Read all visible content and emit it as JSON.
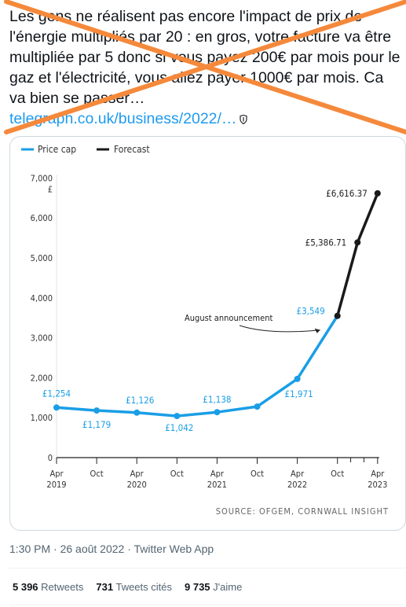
{
  "tweet": {
    "text": "Les gens ne réalisent pas encore l'impact de prix de l'énergie multipliés par 20 : en gros, votre facture va être multipliée par 5 donc si vous payez 200€ par mois pour le gaz et l'électricité, vous allez payer 1000€ par mois. Ca va bien se passer…",
    "link_text": "telegraph.co.uk/business/2022/…",
    "timestamp": "1:30 PM · 26 août 2022 · Twitter Web App",
    "stats": [
      {
        "count": "5 396",
        "label": "Retweets"
      },
      {
        "count": "731",
        "label": "Tweets cités"
      },
      {
        "count": "9 735",
        "label": "J'aime"
      }
    ]
  },
  "overlay": {
    "cross_color": "#f5893b"
  },
  "chart_data": {
    "type": "line",
    "legend": [
      {
        "name": "Price cap",
        "color": "#1a9ee6"
      },
      {
        "name": "Forecast",
        "color": "#1a1a1a"
      }
    ],
    "y_unit": "£",
    "yticks": [
      "0",
      "1,000",
      "2,000",
      "3,000",
      "4,000",
      "5,000",
      "6,000",
      "7,000"
    ],
    "ylim": [
      0,
      7000
    ],
    "xticks": [
      {
        "month": "Apr",
        "year": "2019"
      },
      {
        "month": "Oct",
        "year": ""
      },
      {
        "month": "Apr",
        "year": "2020"
      },
      {
        "month": "Oct",
        "year": ""
      },
      {
        "month": "Apr",
        "year": "2021"
      },
      {
        "month": "Oct",
        "year": ""
      },
      {
        "month": "Apr",
        "year": "2022"
      },
      {
        "month": "Oct",
        "year": ""
      },
      {
        "month": "Apr",
        "year": "2023"
      }
    ],
    "series": [
      {
        "name": "Price cap",
        "points": [
          {
            "x": "Apr 2019",
            "y": 1254,
            "label": "£1,254"
          },
          {
            "x": "Oct 2019",
            "y": 1179,
            "label": "£1,179"
          },
          {
            "x": "Apr 2020",
            "y": 1126,
            "label": "£1,126"
          },
          {
            "x": "Oct 2020",
            "y": 1042,
            "label": "£1,042"
          },
          {
            "x": "Apr 2021",
            "y": 1138,
            "label": "£1,138"
          },
          {
            "x": "Oct 2021",
            "y": 1277,
            "label": ""
          },
          {
            "x": "Apr 2022",
            "y": 1971,
            "label": "£1,971"
          },
          {
            "x": "Oct 2022",
            "y": 3549,
            "label": "£3,549"
          }
        ]
      },
      {
        "name": "Forecast",
        "points": [
          {
            "x": "Oct 2022",
            "y": 3549,
            "label": ""
          },
          {
            "x": "Jan 2023",
            "y": 5386.71,
            "label": "£5,386.71"
          },
          {
            "x": "Apr 2023",
            "y": 6616.37,
            "label": "£6,616.37"
          }
        ]
      }
    ],
    "annotation": "August announcement",
    "source": "SOURCE: OFGEM, CORNWALL INSIGHT"
  }
}
